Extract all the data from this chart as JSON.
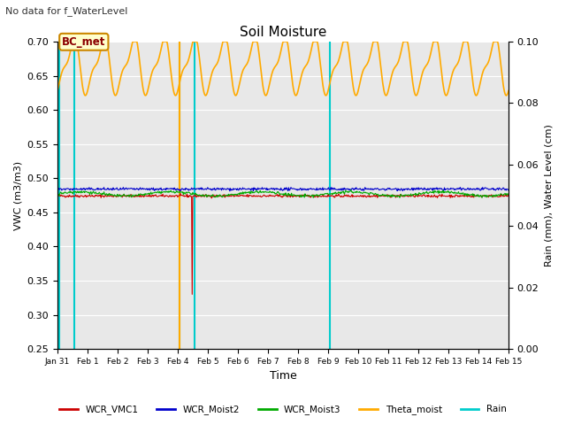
{
  "title": "Soil Moisture",
  "subtitle": "No data for f_WaterLevel",
  "xlabel": "Time",
  "ylabel_left": "VWC (m3/m3)",
  "ylabel_right": "Rain (mm), Water Level (cm)",
  "ylim_left": [
    0.25,
    0.7
  ],
  "ylim_right": [
    0.0,
    0.1
  ],
  "yticks_left": [
    0.25,
    0.3,
    0.35,
    0.4,
    0.45,
    0.5,
    0.55,
    0.6,
    0.65,
    0.7
  ],
  "yticks_right": [
    0.0,
    0.02,
    0.04,
    0.06,
    0.08,
    0.1
  ],
  "xtick_labels": [
    "Jan 31",
    "Feb 1",
    "Feb 2",
    "Feb 3",
    "Feb 4",
    "Feb 5",
    "Feb 6",
    "Feb 7",
    "Feb 8",
    "Feb 9",
    "Feb 10",
    "Feb 11",
    "Feb 12",
    "Feb 13",
    "Feb 14",
    "Feb 15"
  ],
  "colors": {
    "WCR_VMC1": "#cc0000",
    "WCR_Moist2": "#0000cc",
    "WCR_Moist3": "#00aa00",
    "Theta_moist": "#ffaa00",
    "Rain": "#00cccc",
    "bg": "#e8e8e8",
    "annotation_bg": "#ffffcc",
    "annotation_border": "#cc8800",
    "annotation_text": "#8b0000"
  },
  "annotation_text": "BC_met",
  "legend_labels": [
    "WCR_VMC1",
    "WCR_Moist2",
    "WCR_Moist3",
    "Theta_moist",
    "Rain"
  ],
  "legend_colors": [
    "#cc0000",
    "#0000cc",
    "#00aa00",
    "#ffaa00",
    "#00cccc"
  ],
  "cyan_vlines_days": [
    0.05,
    0.55,
    4.05,
    4.55,
    9.05
  ],
  "orange_vline_day": 4.05,
  "vmc1_spike_day": 4.5,
  "vmc1_spike_val": 0.33
}
